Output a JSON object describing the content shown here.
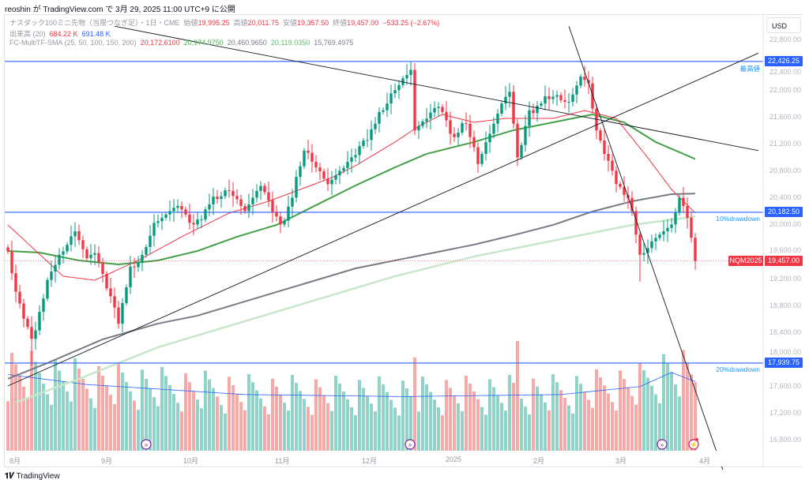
{
  "published": "reoshin が TradingView.com で 3月 29, 2025 11:00 UTC+9 に公開",
  "legend": {
    "symbol": "ナスダック100ミニ先物（当限つなぎ足）・1日・CME",
    "open_label": "始値",
    "open": "19,995.25",
    "high_label": "高値",
    "high": "20,011.75",
    "low_label": "安値",
    "low": "19,357.50",
    "close_label": "終値",
    "close": "19,457.00",
    "change": "−533.25 (−2.67%)",
    "volume_label": "出来高 (20)",
    "volume": "684.22 K",
    "volume_ma": "691.48 K",
    "sma_label": "FC-MultiTF-SMA (25, 50, 100, 150, 200)",
    "sma_values": [
      "20,172.6100",
      "20,974.9750",
      "20,460.9650",
      "20,119.0350",
      "15,769.4975"
    ]
  },
  "currency": "USD",
  "price_ticks": [
    "22,800.00",
    "22,400.00",
    "22,000.00",
    "21,600.00",
    "21,200.00",
    "20,800.00",
    "20,400.00",
    "20,000.00",
    "19,600.00",
    "19,200.00",
    "18,800.00",
    "18,400.00",
    "18,000.00",
    "17,600.00",
    "17,200.00",
    "16,800.00"
  ],
  "time_ticks": [
    "8月",
    "9月",
    "10月",
    "11月",
    "12月",
    "2025",
    "2月",
    "3月",
    "4月"
  ],
  "levels": [
    {
      "price": 22426.25,
      "label": "22,426.25",
      "note": "最高値"
    },
    {
      "price": 20182.5,
      "label": "20,182.50",
      "note": "10%drawdown"
    },
    {
      "price": 17939.75,
      "label": "17,939.75",
      "note": "20%drawdown"
    }
  ],
  "last_price": {
    "symbol": "NQM2025",
    "label": "19,457.00",
    "price": 19457
  },
  "colors": {
    "up": "#089981",
    "down": "#f23645",
    "level": "#2962ff",
    "sma25": "#f23645",
    "sma50": "#43a047",
    "sma100": "#787b86",
    "sma150": "#c8e6c9",
    "vol_ma": "#2962ff"
  },
  "brand": "TradingView",
  "chart_data": {
    "type": "candlestick",
    "candle_count": 175,
    "close_keypoints": [
      [
        0,
        19600
      ],
      [
        2,
        19000
      ],
      [
        6,
        18300
      ],
      [
        8,
        18700
      ],
      [
        11,
        19300
      ],
      [
        17,
        19900
      ],
      [
        20,
        19500
      ],
      [
        22,
        19600
      ],
      [
        25,
        19100
      ],
      [
        28,
        18600
      ],
      [
        31,
        19300
      ],
      [
        34,
        19500
      ],
      [
        37,
        20000
      ],
      [
        43,
        20300
      ],
      [
        47,
        20000
      ],
      [
        51,
        20300
      ],
      [
        56,
        20500
      ],
      [
        60,
        20200
      ],
      [
        64,
        20600
      ],
      [
        69,
        20000
      ],
      [
        72,
        20400
      ],
      [
        75,
        21100
      ],
      [
        81,
        20600
      ],
      [
        87,
        21000
      ],
      [
        93,
        21500
      ],
      [
        98,
        22000
      ],
      [
        102,
        22300
      ],
      [
        103,
        21400
      ],
      [
        106,
        21600
      ],
      [
        109,
        21800
      ],
      [
        113,
        21300
      ],
      [
        116,
        21500
      ],
      [
        119,
        20900
      ],
      [
        125,
        21800
      ],
      [
        127,
        22000
      ],
      [
        129,
        21000
      ],
      [
        132,
        21700
      ],
      [
        138,
        21900
      ],
      [
        142,
        21800
      ],
      [
        145,
        22200
      ],
      [
        147,
        22100
      ],
      [
        149,
        21400
      ],
      [
        153,
        20800
      ],
      [
        158,
        20200
      ],
      [
        160,
        19500
      ],
      [
        164,
        19800
      ],
      [
        168,
        20000
      ],
      [
        170,
        20400
      ],
      [
        172,
        20150
      ],
      [
        174,
        19457
      ]
    ],
    "sma25": [
      [
        0,
        19994
      ],
      [
        14,
        19231
      ],
      [
        22,
        19172
      ],
      [
        33,
        19466
      ],
      [
        44,
        19818
      ],
      [
        56,
        20170
      ],
      [
        66,
        20346
      ],
      [
        74,
        20522
      ],
      [
        82,
        20698
      ],
      [
        88,
        20875
      ],
      [
        98,
        21227
      ],
      [
        104,
        21462
      ],
      [
        110,
        21638
      ],
      [
        118,
        21520
      ],
      [
        126,
        21579
      ],
      [
        138,
        21579
      ],
      [
        146,
        21696
      ],
      [
        154,
        21579
      ],
      [
        162,
        20992
      ],
      [
        168,
        20522
      ],
      [
        174,
        20172
      ]
    ],
    "sma50": [
      [
        0,
        19607
      ],
      [
        8,
        19583
      ],
      [
        18,
        19466
      ],
      [
        28,
        19407
      ],
      [
        38,
        19466
      ],
      [
        48,
        19607
      ],
      [
        58,
        19818
      ],
      [
        68,
        19994
      ],
      [
        78,
        20288
      ],
      [
        88,
        20581
      ],
      [
        98,
        20851
      ],
      [
        106,
        21051
      ],
      [
        118,
        21227
      ],
      [
        128,
        21403
      ],
      [
        138,
        21520
      ],
      [
        148,
        21638
      ],
      [
        156,
        21520
      ],
      [
        164,
        21227
      ],
      [
        174,
        20975
      ]
    ],
    "sma100": [
      [
        0,
        17705
      ],
      [
        10,
        17940
      ],
      [
        24,
        18292
      ],
      [
        38,
        18527
      ],
      [
        48,
        18644
      ],
      [
        58,
        18820
      ],
      [
        68,
        18996
      ],
      [
        78,
        19172
      ],
      [
        88,
        19348
      ],
      [
        98,
        19466
      ],
      [
        108,
        19583
      ],
      [
        118,
        19701
      ],
      [
        128,
        19842
      ],
      [
        138,
        19994
      ],
      [
        148,
        20194
      ],
      [
        158,
        20346
      ],
      [
        168,
        20452
      ],
      [
        174,
        20461
      ]
    ],
    "sma150": [
      [
        2,
        17353
      ],
      [
        18,
        17705
      ],
      [
        38,
        18174
      ],
      [
        58,
        18527
      ],
      [
        78,
        18879
      ],
      [
        98,
        19231
      ],
      [
        118,
        19525
      ],
      [
        138,
        19759
      ],
      [
        158,
        19994
      ],
      [
        174,
        20119
      ]
    ],
    "volume_ma_k": [
      [
        0,
        760
      ],
      [
        20,
        660
      ],
      [
        60,
        560
      ],
      [
        100,
        540
      ],
      [
        140,
        560
      ],
      [
        160,
        640
      ],
      [
        168,
        780
      ],
      [
        174,
        691
      ]
    ],
    "last_volume_k": 684.22,
    "trendlines": [
      [
        [
          27,
          22950
        ],
        [
          190,
          21100
        ]
      ],
      [
        [
          0,
          17600
        ],
        [
          190,
          22550
        ]
      ],
      [
        [
          142,
          22950
        ],
        [
          181,
          16350
        ]
      ]
    ],
    "y_range": [
      16800,
      22800
    ]
  }
}
